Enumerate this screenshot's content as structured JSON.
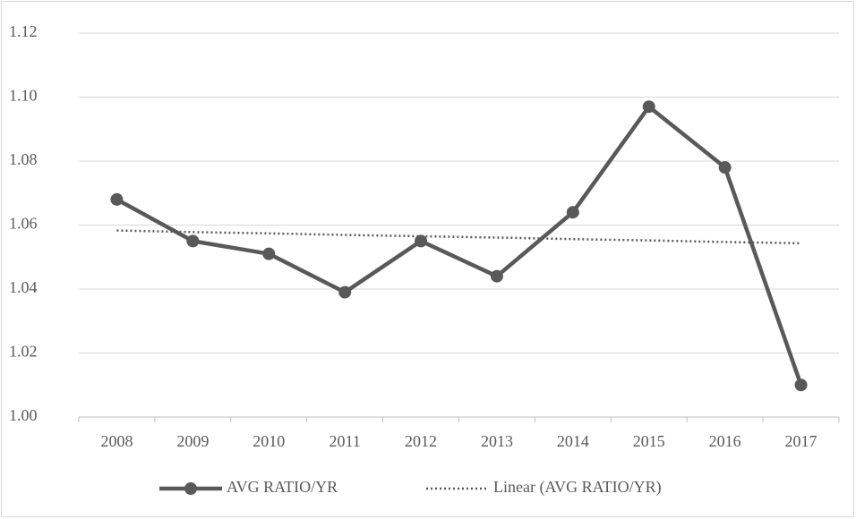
{
  "chart_data": {
    "type": "line",
    "categories": [
      "2008",
      "2009",
      "2010",
      "2011",
      "2012",
      "2013",
      "2014",
      "2015",
      "2016",
      "2017"
    ],
    "series": [
      {
        "name": "AVG RATIO/YR",
        "color": "#595959",
        "style": "solid",
        "markers": true,
        "values": [
          1.068,
          1.055,
          1.051,
          1.039,
          1.055,
          1.044,
          1.064,
          1.097,
          1.078,
          1.01
        ]
      },
      {
        "name": "Linear (AVG RATIO/YR)",
        "color": "#595959",
        "style": "dotted",
        "markers": false,
        "values": [
          1.0583,
          1.0578,
          1.0574,
          1.0569,
          1.0565,
          1.0561,
          1.0556,
          1.0552,
          1.0547,
          1.0543
        ]
      }
    ],
    "ylim": [
      1.0,
      1.12
    ],
    "yticks": [
      {
        "value": 1.0,
        "label": "1.00"
      },
      {
        "value": 1.02,
        "label": "1.02"
      },
      {
        "value": 1.04,
        "label": "1.04"
      },
      {
        "value": 1.06,
        "label": "1.06"
      },
      {
        "value": 1.08,
        "label": "1.08"
      },
      {
        "value": 1.1,
        "label": "1.10"
      },
      {
        "value": 1.12,
        "label": "1.12"
      }
    ],
    "grid": true,
    "legend": "bottom"
  }
}
